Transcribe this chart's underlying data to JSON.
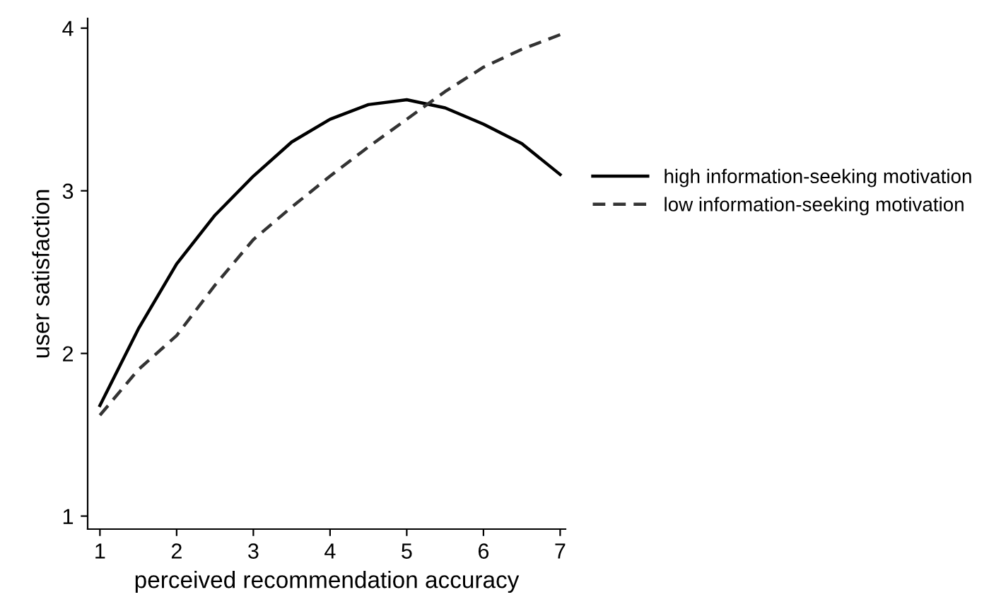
{
  "chart_data": {
    "type": "line",
    "xlabel": "perceived recommendation accuracy",
    "ylabel": "user satisfaction",
    "x": [
      1,
      1.5,
      2,
      2.5,
      3,
      3.5,
      4,
      4.5,
      5,
      5.5,
      6,
      6.5,
      7
    ],
    "series": [
      {
        "name": "high information-seeking motivation",
        "color": "#000000",
        "line_style": "solid",
        "values": [
          1.68,
          2.15,
          2.55,
          2.85,
          3.09,
          3.3,
          3.44,
          3.53,
          3.56,
          3.51,
          3.41,
          3.29,
          3.1
        ]
      },
      {
        "name": "low information-seeking motivation",
        "color": "#333333",
        "line_style": "dashed",
        "values": [
          1.62,
          1.9,
          2.11,
          2.42,
          2.7,
          2.9,
          3.09,
          3.27,
          3.44,
          3.61,
          3.76,
          3.87,
          3.96
        ]
      }
    ],
    "xlim": [
      0.84,
      7.07
    ],
    "ylim": [
      0.92,
      4.06
    ],
    "xticks": [
      1,
      2,
      3,
      4,
      5,
      6,
      7
    ],
    "yticks": [
      1,
      2,
      3,
      4
    ],
    "grid": false,
    "legend": "right",
    "marker": "none"
  }
}
